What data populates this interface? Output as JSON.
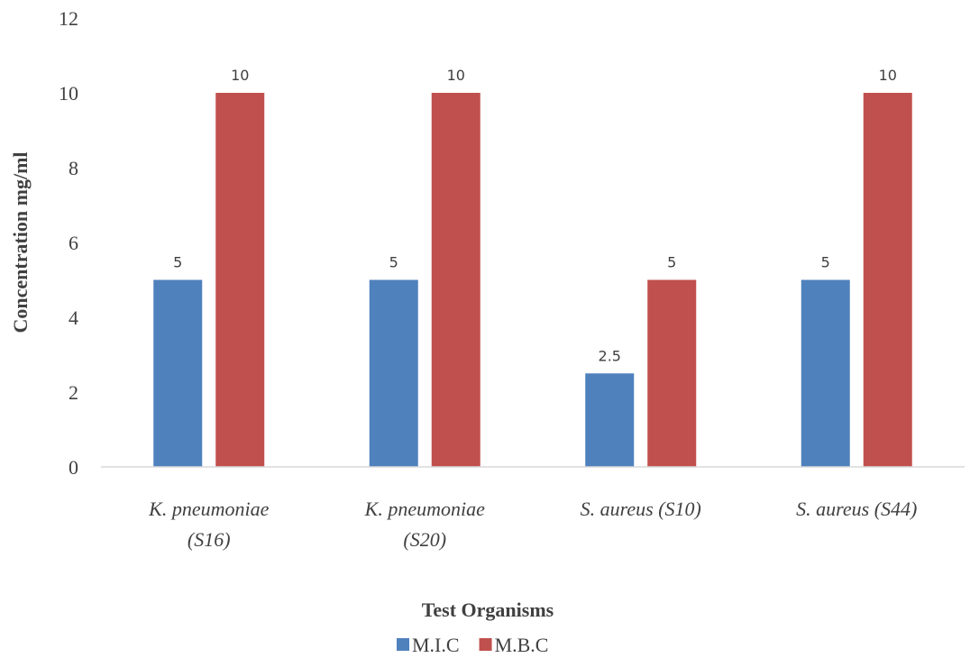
{
  "chart_data": {
    "type": "bar",
    "categories": [
      [
        "K. pneumoniae",
        "(S16)"
      ],
      [
        "K. pneumoniae",
        "(S20)"
      ],
      [
        "S. aureus (S10)"
      ],
      [
        "S. aureus (S44)"
      ]
    ],
    "series": [
      {
        "name": "M.I.C",
        "values": [
          5,
          5,
          2.5,
          5
        ],
        "color": "#4f81bd"
      },
      {
        "name": "M.B.C",
        "values": [
          10,
          10,
          5,
          10
        ],
        "color": "#c0504d"
      }
    ],
    "data_labels": [
      [
        "5",
        "5",
        "2.5",
        "5"
      ],
      [
        "10",
        "10",
        "5",
        "10"
      ]
    ],
    "title": "",
    "xlabel": "Test Organisms",
    "ylabel": "Concentration mg/ml",
    "ylim": [
      0,
      12
    ],
    "yticks": [
      0,
      2,
      4,
      6,
      8,
      10,
      12
    ],
    "grid": false,
    "legend_position": "bottom",
    "colors": {
      "axis": "#d9d9d9",
      "text": "#404040"
    }
  }
}
